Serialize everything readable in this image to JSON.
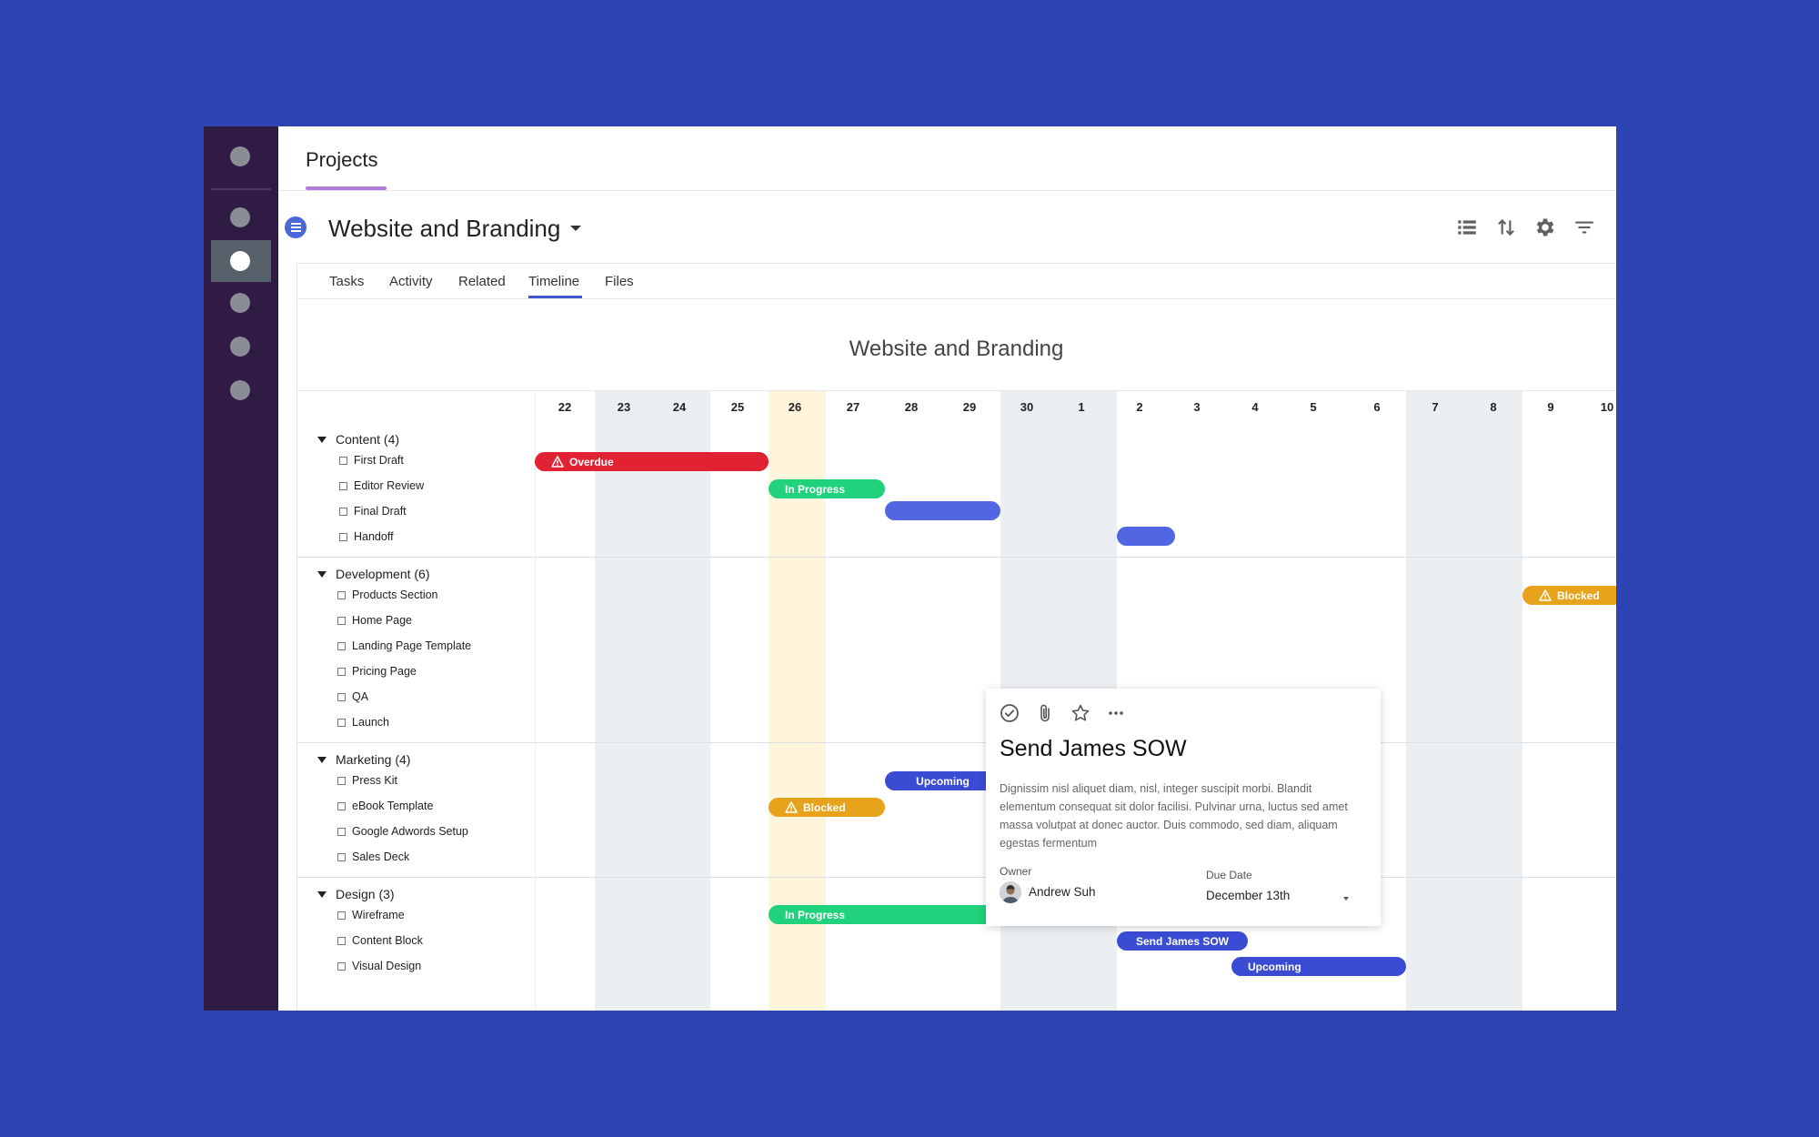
{
  "header": {
    "title": "Projects"
  },
  "project": {
    "title": "Website and Branding"
  },
  "tabs": [
    {
      "label": "Tasks"
    },
    {
      "label": "Activity"
    },
    {
      "label": "Related"
    },
    {
      "label": "Timeline"
    },
    {
      "label": "Files"
    }
  ],
  "active_tab": "Timeline",
  "toolbar_icons": [
    "list-icon",
    "sort-icon",
    "gear-icon",
    "filter-icon"
  ],
  "timeline": {
    "title": "Website and Branding",
    "days": [
      "22",
      "23",
      "24",
      "25",
      "26",
      "27",
      "28",
      "29",
      "30",
      "1",
      "2",
      "3",
      "4",
      "5",
      "6",
      "7",
      "8",
      "9",
      "10"
    ],
    "today": "26",
    "shaded_days": [
      "23",
      "24",
      "30",
      "1",
      "7",
      "8"
    ]
  },
  "groups": [
    {
      "label": "Content (4)",
      "tasks": [
        "First Draft",
        "Editor Review",
        "Final Draft",
        "Handoff"
      ]
    },
    {
      "label": "Development (6)",
      "tasks": [
        "Products Section",
        "Home Page",
        "Landing Page Template",
        "Pricing Page",
        "QA",
        "Launch"
      ]
    },
    {
      "label": "Marketing (4)",
      "tasks": [
        "Press Kit",
        "eBook Template",
        "Google Adwords Setup",
        "Sales Deck"
      ]
    },
    {
      "label": "Design (3)",
      "tasks": [
        "Wireframe",
        "Content Block",
        "Visual Design"
      ]
    }
  ],
  "bars": [
    {
      "label": "Overdue",
      "status": "overdue",
      "warning": true
    },
    {
      "label": "In Progress",
      "status": "in-progress"
    },
    {
      "label": "",
      "status": "scheduled"
    },
    {
      "label": "",
      "status": "scheduled"
    },
    {
      "label": "Blocked",
      "status": "blocked",
      "warning": true
    },
    {
      "label": "Upcoming",
      "status": "upcoming"
    },
    {
      "label": "Blocked",
      "status": "blocked",
      "warning": true
    },
    {
      "label": "In Progress",
      "status": "in-progress"
    },
    {
      "label": "Send James SOW",
      "status": "upcoming"
    },
    {
      "label": "Upcoming",
      "status": "upcoming"
    }
  ],
  "colors": {
    "background": "#2c44b4",
    "rail": "#2f1b44",
    "overdue": "#e12232",
    "in_progress": "#1fd27b",
    "scheduled": "#5166e2",
    "upcoming": "#3a4cd4",
    "blocked": "#e6a31b",
    "today_column": "#fff4dc",
    "weekend_column": "#ebeff2"
  },
  "card": {
    "title": "Send James SOW",
    "description": "Dignissim nisl aliquet diam, nisl, integer suscipit morbi. Blandit elementum consequat sit dolor facilisi. Pulvinar urna, luctus sed amet massa volutpat at donec auctor. Duis commodo, sed diam, aliquam egestas fermentum",
    "owner_label": "Owner",
    "owner_name": "Andrew Suh",
    "due_label": "Due Date",
    "due_value": "December 13th",
    "icons": [
      "check-circle-icon",
      "paperclip-icon",
      "star-icon",
      "more-icon"
    ]
  }
}
